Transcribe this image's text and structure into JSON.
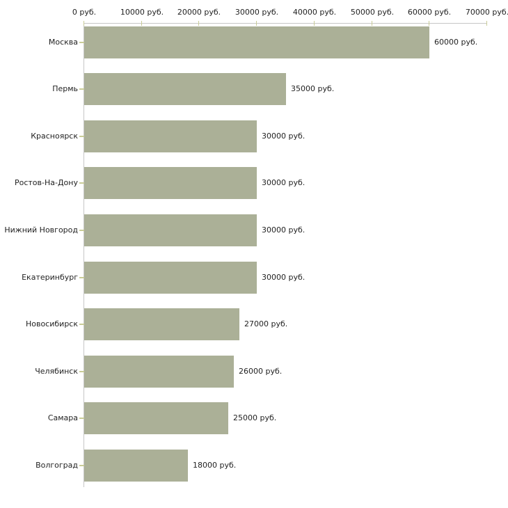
{
  "chart_data": {
    "type": "bar",
    "orientation": "horizontal",
    "title": "",
    "xlabel": "",
    "ylabel": "",
    "grid": false,
    "legend": false,
    "categories": [
      "Москва",
      "Пермь",
      "Красноярск",
      "Ростов-На-Дону",
      "Нижний Новгород",
      "Екатеринбург",
      "Новосибирск",
      "Челябинск",
      "Самара",
      "Волгоград"
    ],
    "values": [
      60000,
      35000,
      30000,
      30000,
      30000,
      30000,
      27000,
      26000,
      25000,
      18000
    ],
    "value_labels": [
      "60000 руб.",
      "35000 руб.",
      "30000 руб.",
      "30000 руб.",
      "30000 руб.",
      "30000 руб.",
      "27000 руб.",
      "26000 руб.",
      "25000 руб.",
      "18000 руб."
    ],
    "x_axis": {
      "position": "top",
      "range": [
        0,
        70000
      ],
      "ticks": [
        0,
        10000,
        20000,
        30000,
        40000,
        50000,
        60000,
        70000
      ],
      "tick_labels": [
        "0 руб.",
        "10000 руб.",
        "20000 руб.",
        "30000 руб.",
        "40000 руб.",
        "50000 руб.",
        "60000 руб.",
        "70000 руб."
      ]
    },
    "colors": {
      "bar": "#abb097",
      "axis_line": "#c6c6c6",
      "tick_mark": "#c9cc97",
      "text": "#1f1f1f",
      "background": "#ffffff"
    }
  }
}
